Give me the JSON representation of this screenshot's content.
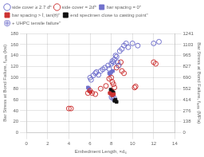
{
  "chart_data": {
    "type": "scatter",
    "xlabel": "Embedment Length, ×d₆",
    "ylabel": "Bar Stress at Bond Failure, fₜ,ₙₕₖ (ksi)",
    "y2label": "Bar Stress at Bond Failure, fₜ,ₙₕₖ (MPa)",
    "xlim": [
      0,
      14
    ],
    "ylim": [
      0,
      180
    ],
    "y2lim": [
      0,
      1241
    ],
    "xticks": [
      0,
      2,
      4,
      6,
      8,
      10,
      12,
      14
    ],
    "yticks": [
      0,
      20,
      40,
      60,
      80,
      100,
      120,
      140,
      160,
      180
    ],
    "y2ticks": [
      0,
      138,
      276,
      414,
      552,
      690,
      827,
      965,
      1103,
      1241
    ],
    "grid": true,
    "legend": "upper left",
    "series": [
      {
        "name": "side cover ≥ 2.7 dᵇ",
        "color": "#7070cc",
        "marker": "open_circle",
        "x": [
          6.0,
          6.1,
          6.3,
          6.5,
          6.6,
          6.8,
          7.0,
          7.2,
          7.4,
          7.7,
          7.8,
          8.0,
          8.1,
          8.2,
          8.3,
          8.4,
          8.5,
          8.6,
          8.7,
          8.8,
          9.0,
          9.2,
          9.4,
          9.6,
          10.0,
          10.5,
          12.0,
          12.5
        ],
        "values": [
          100,
          96,
          104,
          108,
          110,
          105,
          112,
          115,
          118,
          122,
          116,
          125,
          130,
          128,
          133,
          140,
          138,
          128,
          122,
          148,
          152,
          158,
          162,
          155,
          162,
          158,
          162,
          165
        ]
      },
      {
        "name": "side cover = 2dᵇ",
        "color": "#cc3333",
        "marker": "open_circle",
        "x": [
          4.0,
          4.2,
          5.8,
          6.0,
          6.2,
          6.5,
          7.0,
          7.5,
          7.8,
          8.0,
          8.1,
          8.2,
          8.3,
          8.5,
          8.7,
          8.9,
          9.0,
          9.2,
          10.2,
          10.3,
          12.0,
          12.2
        ],
        "values": [
          44,
          44,
          72,
          76,
          72,
          70,
          80,
          85,
          98,
          100,
          92,
          88,
          82,
          118,
          122,
          128,
          112,
          108,
          82,
          84,
          128,
          125
        ]
      },
      {
        "name": "bar spacing = 0\"",
        "color": "#7070cc",
        "marker": "square",
        "x": [
          5.8,
          5.9,
          7.8,
          7.9,
          8.0,
          8.15
        ],
        "values": [
          82,
          80,
          108,
          106,
          110,
          112
        ]
      },
      {
        "name": "bar spacing > ẛ, tan(θ)\"",
        "color": "#cc3333",
        "marker": "square",
        "x": [
          5.9,
          6.05,
          7.85,
          8.0,
          8.1,
          8.25
        ],
        "values": [
          76,
          74,
          72,
          70,
          68,
          70
        ]
      },
      {
        "name": "end specimen close to casting point\"",
        "color": "#111111",
        "marker": "square",
        "x": [
          7.95,
          8.1,
          8.2,
          8.3,
          8.4,
          8.5
        ],
        "values": [
          78,
          76,
          73,
          58,
          60,
          56
        ]
      },
      {
        "name": "+ UHPC tensile failure\"",
        "color": "#7070cc",
        "marker": "open_circle_plus",
        "x": [
          8.05,
          8.25
        ],
        "values": [
          65,
          62
        ]
      }
    ]
  }
}
